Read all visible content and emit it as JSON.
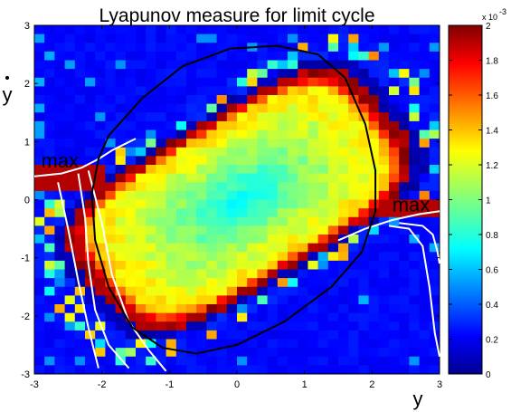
{
  "chart_data": {
    "type": "heatmap",
    "title": "Lyapunov measure for limit cycle",
    "xlabel": "y",
    "ylabel": "y",
    "ylabel_overdot": true,
    "xlim": [
      -3,
      3
    ],
    "ylim": [
      -3,
      3
    ],
    "xticks": [
      -3,
      -2,
      -1,
      0,
      1,
      2,
      3
    ],
    "yticks": [
      -3,
      -2,
      -1,
      0,
      1,
      2,
      3
    ],
    "grid_cells": [
      40,
      40
    ],
    "colormap": "jet",
    "colorbar": {
      "range": [
        0,
        0.002
      ],
      "ticks": [
        "0",
        "0.2",
        "0.4",
        "0.6",
        "0.8",
        "1",
        "1.2",
        "1.4",
        "1.6",
        "1.8",
        "2"
      ],
      "multiplier": "x 10",
      "exponent": "-3"
    },
    "annotations": [
      {
        "text": "max",
        "x": -2.9,
        "y": 0.55
      },
      {
        "text": "max",
        "x": 2.3,
        "y": -0.2
      }
    ],
    "curves": {
      "limit_cycle": {
        "color": "#000000",
        "points": [
          [
            -1.9,
            1.1
          ],
          [
            -1.4,
            1.75
          ],
          [
            -0.8,
            2.3
          ],
          [
            -0.1,
            2.6
          ],
          [
            0.6,
            2.65
          ],
          [
            1.2,
            2.5
          ],
          [
            1.6,
            2.1
          ],
          [
            1.9,
            1.3
          ],
          [
            2.05,
            0.5
          ],
          [
            2.05,
            -0.2
          ],
          [
            1.85,
            -0.9
          ],
          [
            1.4,
            -1.5
          ],
          [
            0.7,
            -2.1
          ],
          [
            0.0,
            -2.5
          ],
          [
            -0.6,
            -2.65
          ],
          [
            -1.1,
            -2.55
          ],
          [
            -1.55,
            -2.2
          ],
          [
            -1.9,
            -1.5
          ],
          [
            -2.1,
            -0.7
          ],
          [
            -2.15,
            0.1
          ],
          [
            -2.05,
            0.7
          ],
          [
            -1.9,
            1.1
          ]
        ]
      },
      "separatrices": {
        "color": "#ffffff",
        "lines": [
          [
            [
              -3.0,
              0.4
            ],
            [
              -2.6,
              0.45
            ],
            [
              -2.3,
              0.55
            ],
            [
              -2.05,
              0.7
            ],
            [
              -1.85,
              0.85
            ],
            [
              -1.5,
              1.05
            ]
          ],
          [
            [
              -2.35,
              0.45
            ],
            [
              -2.25,
              -0.3
            ],
            [
              -2.2,
              -1.1
            ],
            [
              -2.1,
              -1.9
            ],
            [
              -1.9,
              -2.5
            ],
            [
              -1.6,
              -2.9
            ]
          ],
          [
            [
              -2.2,
              0.5
            ],
            [
              -2.0,
              -0.4
            ],
            [
              -1.85,
              -1.3
            ],
            [
              -1.6,
              -2.1
            ],
            [
              -1.3,
              -2.6
            ],
            [
              -1.05,
              -2.95
            ]
          ],
          [
            [
              -2.65,
              0.3
            ],
            [
              -2.5,
              -0.5
            ],
            [
              -2.35,
              -1.4
            ],
            [
              -2.2,
              -2.2
            ],
            [
              -2.05,
              -2.9
            ]
          ],
          [
            [
              1.5,
              -0.7
            ],
            [
              1.9,
              -0.5
            ],
            [
              2.3,
              -0.35
            ],
            [
              2.7,
              -0.25
            ],
            [
              3.0,
              -0.2
            ]
          ],
          [
            [
              2.25,
              -0.45
            ],
            [
              2.55,
              -0.5
            ],
            [
              2.75,
              -0.8
            ],
            [
              2.85,
              -1.5
            ],
            [
              2.93,
              -2.3
            ],
            [
              3.0,
              -2.7
            ]
          ],
          [
            [
              2.4,
              -0.4
            ],
            [
              2.75,
              -0.45
            ],
            [
              2.9,
              -0.6
            ],
            [
              2.97,
              -0.9
            ],
            [
              3.0,
              -1.1
            ]
          ]
        ]
      }
    }
  }
}
